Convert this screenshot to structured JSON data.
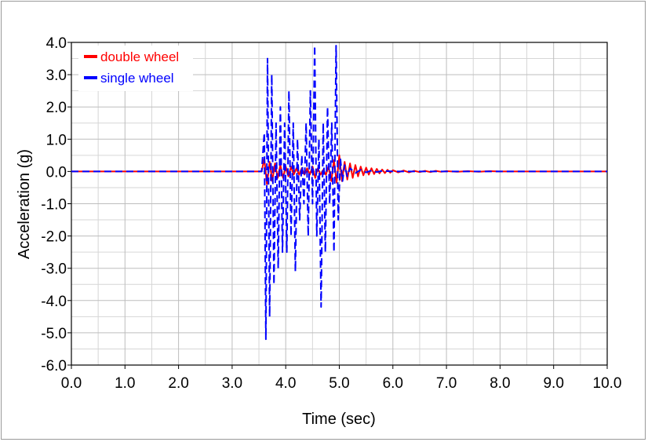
{
  "chart_data": {
    "type": "line",
    "xlabel": "Time (sec)",
    "ylabel": "Acceleration (g)",
    "xlim": [
      0,
      10
    ],
    "ylim": [
      -6,
      4
    ],
    "x_ticks": [
      "0.0",
      "1.0",
      "2.0",
      "3.0",
      "4.0",
      "5.0",
      "6.0",
      "7.0",
      "8.0",
      "9.0",
      "10.0"
    ],
    "y_ticks": [
      "4.0",
      "3.0",
      "2.0",
      "1.0",
      "0.0",
      "-1.0",
      "-2.0",
      "-3.0",
      "-4.0",
      "-5.0",
      "-6.0"
    ],
    "grid": true,
    "legend_position": "top-left",
    "series": [
      {
        "name": "double wheel",
        "color": "#ff0000",
        "style": "solid",
        "x": [
          0,
          3.55,
          3.6,
          3.65,
          3.7,
          3.75,
          3.8,
          3.85,
          3.9,
          3.95,
          4.0,
          4.05,
          4.1,
          4.15,
          4.2,
          4.25,
          4.3,
          4.35,
          4.4,
          4.45,
          4.5,
          4.55,
          4.6,
          4.65,
          4.7,
          4.75,
          4.8,
          4.85,
          4.9,
          4.95,
          5.0,
          5.05,
          5.1,
          5.15,
          5.2,
          5.25,
          5.3,
          5.35,
          5.4,
          5.45,
          5.5,
          5.55,
          5.6,
          5.65,
          5.7,
          5.75,
          5.8,
          5.85,
          5.9,
          5.95,
          6.0,
          6.1,
          6.2,
          6.3,
          6.4,
          6.5,
          6.6,
          6.7,
          6.8,
          6.9,
          7.0,
          7.2,
          7.4,
          7.6,
          7.8,
          8.0,
          8.5,
          9.0,
          9.5,
          10.0
        ],
        "values": [
          0,
          0,
          0.4,
          -0.4,
          0.3,
          -0.3,
          0.25,
          -0.2,
          0.2,
          -0.2,
          0.15,
          -0.15,
          0.15,
          -0.1,
          0.1,
          -0.1,
          0.1,
          -0.1,
          0.1,
          -0.1,
          0.15,
          -0.2,
          0.1,
          -0.1,
          0.05,
          -0.1,
          0.15,
          -0.3,
          0.35,
          -0.35,
          0.5,
          -0.3,
          0.3,
          -0.25,
          0.25,
          -0.2,
          0.2,
          -0.15,
          0.15,
          -0.12,
          0.12,
          -0.1,
          0.1,
          -0.08,
          0.08,
          -0.06,
          0.06,
          -0.05,
          0.05,
          -0.04,
          0.04,
          -0.03,
          0.03,
          -0.03,
          0.02,
          -0.02,
          0.02,
          -0.02,
          0.02,
          -0.01,
          0.01,
          -0.01,
          0.01,
          -0.01,
          0.01,
          0,
          0,
          0,
          0,
          0
        ]
      },
      {
        "name": "single wheel",
        "color": "#0000ff",
        "style": "dashed",
        "x": [
          0,
          3.55,
          3.6,
          3.63,
          3.66,
          3.7,
          3.74,
          3.78,
          3.82,
          3.86,
          3.9,
          3.94,
          3.98,
          4.02,
          4.06,
          4.1,
          4.14,
          4.18,
          4.22,
          4.26,
          4.3,
          4.34,
          4.38,
          4.42,
          4.46,
          4.5,
          4.54,
          4.58,
          4.62,
          4.66,
          4.7,
          4.74,
          4.78,
          4.82,
          4.86,
          4.9,
          4.94,
          4.98,
          5.02,
          5.06,
          5.1,
          5.15,
          5.2,
          5.3,
          5.4,
          5.5,
          5.6,
          5.7,
          5.8,
          6.0,
          6.5,
          7.0,
          7.5,
          8.0,
          9.0,
          10.0
        ],
        "values": [
          0,
          0,
          1.2,
          -5.2,
          3.5,
          -4.5,
          3.0,
          -3.5,
          1.5,
          -3.0,
          2.0,
          -2.5,
          1.5,
          -2.5,
          2.5,
          -2.0,
          1.5,
          -3.1,
          1.0,
          -1.5,
          0.5,
          -1.0,
          1.5,
          -2.0,
          2.5,
          -1.0,
          3.9,
          -2.0,
          1.0,
          -4.2,
          1.5,
          -2.5,
          2.0,
          -1.0,
          1.5,
          -2.5,
          3.9,
          -1.5,
          0.4,
          -0.3,
          0.2,
          -0.15,
          0.1,
          -0.05,
          0.05,
          -0.03,
          0.03,
          -0.02,
          0.02,
          0,
          0,
          0,
          0,
          0,
          0,
          0
        ]
      }
    ]
  },
  "legend": {
    "items": [
      {
        "label": "double wheel",
        "color": "#ff0000"
      },
      {
        "label": "single wheel",
        "color": "#0000ff"
      }
    ]
  }
}
